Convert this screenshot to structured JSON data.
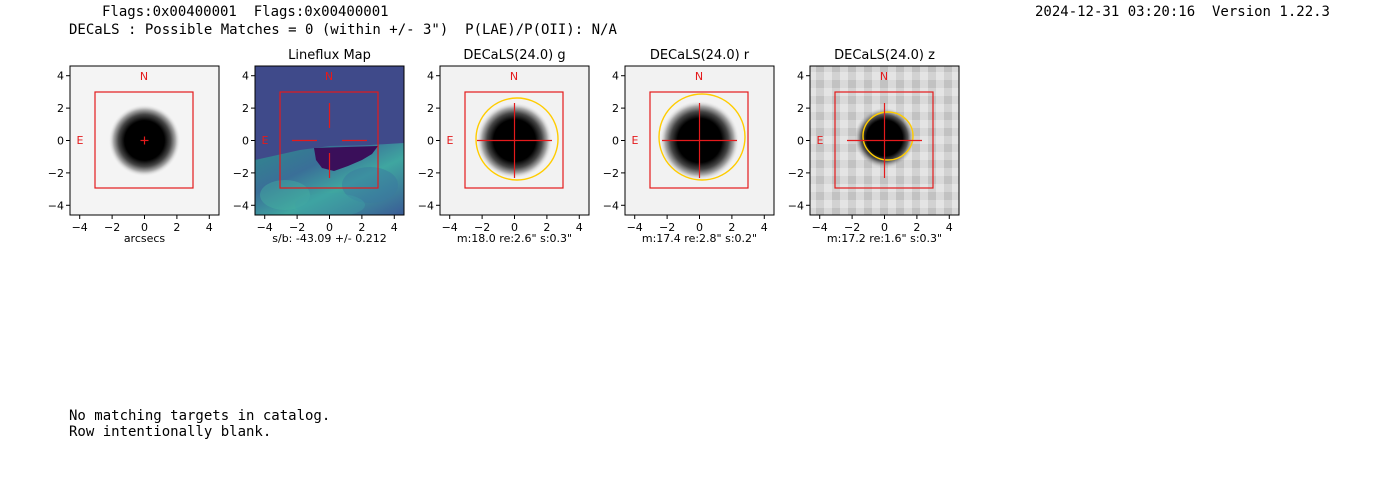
{
  "header": {
    "flags": "Flags:0x00400001  Flags:0x00400001",
    "decals_summary": "DECaLS : Possible Matches = 0 (within +/- 3\")  P(LAE)/P(OII): N/A",
    "timestamp_version": "2024-12-31 03:20:16  Version 1.22.3"
  },
  "axis_ticks": [
    "−4",
    "−2",
    "0",
    "2",
    "4"
  ],
  "compass": {
    "north": "N",
    "east": "E"
  },
  "colors": {
    "box": "#e41a1c",
    "ellipse": "#ffcc00",
    "lineflux_bg": "#3f4a8a",
    "lineflux_dark": "#3a0f5a"
  },
  "panels": [
    {
      "title": "",
      "caption": "arcsecs"
    },
    {
      "title": "Lineflux Map",
      "caption": "s/b: -43.09 +/- 0.212"
    },
    {
      "title": "DECaLS(24.0) g",
      "caption": "m:18.0  re:2.6\"  s:0.3\""
    },
    {
      "title": "DECaLS(24.0) r",
      "caption": "m:17.4  re:2.8\"  s:0.2\""
    },
    {
      "title": "DECaLS(24.0) z",
      "caption": "m:17.2  re:1.6\"  s:0.3\""
    }
  ],
  "footer": {
    "line1": "No matching targets in catalog.",
    "line2": "Row intentionally blank."
  }
}
